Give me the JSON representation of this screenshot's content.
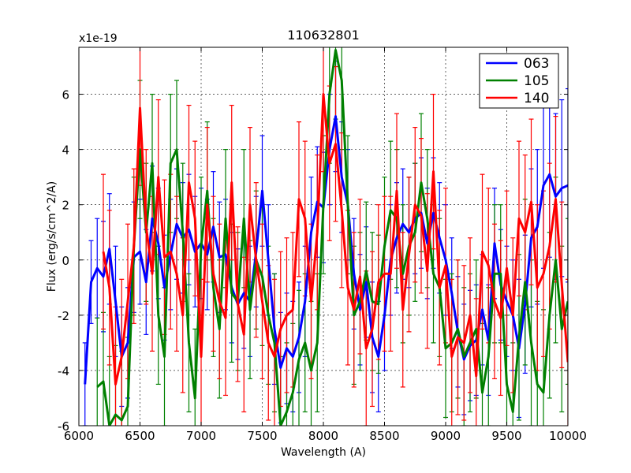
{
  "chart_data": {
    "type": "line",
    "title": "110632801",
    "xlabel": "Wavelength (A)",
    "ylabel": "Flux (erg/s/cm^2/A)",
    "offset_label": "x1e-19",
    "xlim": [
      6000,
      10000
    ],
    "ylim": [
      -6,
      7.7
    ],
    "xticks": [
      6000,
      6500,
      7000,
      7500,
      8000,
      8500,
      9000,
      9500,
      10000
    ],
    "yticks": [
      -6,
      -4,
      -2,
      0,
      2,
      4,
      6
    ],
    "grid": true,
    "legend_position": "top-right",
    "series": [
      {
        "name": "063",
        "color": "#0000ff",
        "x": [
          6050,
          6100,
          6150,
          6200,
          6250,
          6300,
          6350,
          6400,
          6450,
          6500,
          6550,
          6600,
          6650,
          6700,
          6750,
          6800,
          6850,
          6900,
          6950,
          7000,
          7050,
          7100,
          7150,
          7200,
          7250,
          7300,
          7350,
          7400,
          7450,
          7500,
          7550,
          7600,
          7650,
          7700,
          7750,
          7800,
          7850,
          7900,
          7950,
          8000,
          8050,
          8100,
          8150,
          8200,
          8250,
          8300,
          8350,
          8400,
          8450,
          8500,
          8550,
          8600,
          8650,
          8700,
          8750,
          8800,
          8850,
          8900,
          8950,
          9000,
          9050,
          9100,
          9150,
          9200,
          9250,
          9300,
          9350,
          9400,
          9450,
          9500,
          9550,
          9600,
          9650,
          9700,
          9750,
          9800,
          9850,
          9900,
          9950,
          10000
        ],
        "y": [
          -4.5,
          -0.8,
          -0.3,
          -0.6,
          0.4,
          -1.5,
          -3.5,
          -3.0,
          0.1,
          0.3,
          -0.8,
          1.5,
          0.6,
          -1.0,
          0.2,
          1.3,
          0.8,
          1.1,
          0.3,
          0.6,
          0.2,
          1.2,
          0.1,
          0.2,
          -1.0,
          -1.6,
          -1.2,
          -1.5,
          0.3,
          2.5,
          0.0,
          -2.5,
          -3.9,
          -3.2,
          -3.5,
          -2.8,
          -1.5,
          1.0,
          2.1,
          1.9,
          4.0,
          5.2,
          3.0,
          2.0,
          -0.5,
          -1.8,
          -0.8,
          -2.8,
          -3.5,
          -2.0,
          0.0,
          0.8,
          1.3,
          1.0,
          1.5,
          1.7,
          0.6,
          1.7,
          0.8,
          0.0,
          -1.2,
          -2.6,
          -3.6,
          -3.1,
          -2.9,
          -1.8,
          -2.9,
          0.6,
          -0.9,
          -1.5,
          -2.0,
          -3.2,
          -1.6,
          0.8,
          1.2,
          2.7,
          3.1,
          2.3,
          2.6,
          2.7
        ],
        "err": [
          1.5,
          1.5,
          1.8,
          2.0,
          2.0,
          2.0,
          1.8,
          2.0,
          2.0,
          1.9,
          1.9,
          1.9,
          2.0,
          1.9,
          2.0,
          2.0,
          2.0,
          2.0,
          2.0,
          2.0,
          2.0,
          2.0,
          2.0,
          2.0,
          2.0,
          2.0,
          2.0,
          2.0,
          2.0,
          2.0,
          2.0,
          2.0,
          2.0,
          2.0,
          2.0,
          2.0,
          2.0,
          2.0,
          2.0,
          2.0,
          2.0,
          2.0,
          2.0,
          2.0,
          2.0,
          2.0,
          2.0,
          2.0,
          2.0,
          2.0,
          2.0,
          2.0,
          2.0,
          2.0,
          2.0,
          2.0,
          2.0,
          2.0,
          2.0,
          2.0,
          2.0,
          2.0,
          2.0,
          2.0,
          2.0,
          2.0,
          2.0,
          2.0,
          2.0,
          2.0,
          2.0,
          2.5,
          2.5,
          2.5,
          2.8,
          3.0,
          3.0,
          3.0,
          3.2,
          3.5
        ]
      },
      {
        "name": "105",
        "color": "#008000",
        "x": [
          6150,
          6200,
          6250,
          6300,
          6350,
          6400,
          6450,
          6500,
          6550,
          6600,
          6650,
          6700,
          6750,
          6800,
          6850,
          6900,
          6950,
          7000,
          7050,
          7100,
          7150,
          7200,
          7250,
          7300,
          7350,
          7400,
          7450,
          7500,
          7550,
          7600,
          7650,
          7700,
          7750,
          7800,
          7850,
          7900,
          7950,
          8000,
          8050,
          8100,
          8150,
          8200,
          8250,
          8300,
          8350,
          8400,
          8450,
          8500,
          8550,
          8600,
          8650,
          8700,
          8750,
          8800,
          8850,
          8900,
          8950,
          9000,
          9050,
          9100,
          9150,
          9200,
          9250,
          9300,
          9350,
          9400,
          9450,
          9500,
          9550,
          9600,
          9650,
          9700,
          9750,
          9800,
          9850,
          9900,
          9950,
          10000
        ],
        "y": [
          -4.6,
          -4.4,
          -6.0,
          -5.6,
          -5.8,
          -5.3,
          0.5,
          4.0,
          1.0,
          3.5,
          -2.0,
          -3.5,
          3.5,
          4.0,
          1.0,
          -3.0,
          -5.0,
          0.5,
          2.5,
          -1.0,
          -2.5,
          1.5,
          -1.2,
          -1.5,
          1.5,
          -1.8,
          0.0,
          -0.6,
          -2.0,
          -3.0,
          -6.0,
          -5.5,
          -4.8,
          -3.6,
          -3.0,
          -4.0,
          -3.0,
          2.0,
          6.0,
          7.6,
          6.5,
          2.0,
          -2.0,
          -1.5,
          -0.4,
          -1.5,
          -1.6,
          0.5,
          1.8,
          1.5,
          -0.5,
          0.5,
          1.0,
          2.8,
          1.5,
          -0.5,
          -1.0,
          -3.2,
          -3.0,
          -2.5,
          -3.5,
          -3.0,
          -2.5,
          -4.8,
          -3.5,
          -0.5,
          -0.5,
          -4.5,
          -5.5,
          -2.8,
          -0.8,
          -3.0,
          -4.5,
          -4.8,
          -2.0,
          0.0,
          -2.5,
          -1.5
        ],
        "err": [
          2.5,
          2.5,
          2.5,
          2.5,
          2.5,
          2.5,
          2.5,
          2.5,
          2.5,
          2.5,
          2.5,
          2.5,
          2.5,
          2.5,
          2.5,
          2.5,
          2.5,
          2.5,
          2.5,
          2.5,
          2.5,
          2.5,
          2.5,
          2.5,
          2.5,
          2.5,
          2.5,
          2.5,
          2.5,
          2.5,
          2.5,
          2.5,
          2.5,
          2.5,
          2.5,
          2.5,
          2.5,
          2.5,
          2.5,
          2.5,
          2.5,
          2.5,
          2.5,
          2.5,
          2.5,
          2.5,
          2.5,
          2.5,
          2.5,
          2.5,
          2.5,
          2.5,
          2.5,
          2.5,
          2.5,
          2.5,
          2.5,
          2.5,
          2.5,
          2.5,
          2.5,
          2.5,
          2.5,
          2.5,
          2.5,
          2.5,
          2.5,
          2.5,
          2.5,
          3.0,
          3.0,
          3.0,
          3.0,
          3.0,
          3.0,
          3.0,
          3.0,
          3.0
        ]
      },
      {
        "name": "140",
        "color": "#ff0000",
        "x": [
          6200,
          6250,
          6300,
          6350,
          6400,
          6450,
          6500,
          6550,
          6600,
          6650,
          6700,
          6750,
          6800,
          6850,
          6900,
          6950,
          7000,
          7050,
          7100,
          7150,
          7200,
          7250,
          7300,
          7350,
          7400,
          7450,
          7500,
          7550,
          7600,
          7650,
          7700,
          7750,
          7800,
          7850,
          7900,
          7950,
          8000,
          8050,
          8100,
          8150,
          8200,
          8250,
          8300,
          8350,
          8400,
          8450,
          8500,
          8550,
          8600,
          8650,
          8700,
          8750,
          8800,
          8850,
          8900,
          8950,
          9000,
          9050,
          9100,
          9150,
          9200,
          9250,
          9300,
          9350,
          9400,
          9450,
          9500,
          9550,
          9600,
          9650,
          9700,
          9750,
          9800,
          9850,
          9900,
          9950,
          10000
        ],
        "y": [
          0.3,
          -1.0,
          -4.5,
          -3.5,
          -1.5,
          0.5,
          5.5,
          1.2,
          -0.5,
          3.0,
          0.1,
          0.3,
          -0.5,
          -2.0,
          2.8,
          1.5,
          -3.5,
          2.0,
          -0.5,
          -1.5,
          -2.1,
          2.8,
          -1.6,
          -2.7,
          2.0,
          0.0,
          -1.5,
          -3.0,
          -3.5,
          -2.5,
          -2.0,
          -1.8,
          2.2,
          1.5,
          -1.5,
          1.0,
          6.0,
          3.5,
          4.2,
          1.8,
          -1.0,
          -1.8,
          -0.6,
          -3.2,
          -2.5,
          -0.8,
          -0.5,
          -0.5,
          2.5,
          -1.8,
          0.2,
          2.0,
          1.6,
          -0.4,
          3.2,
          -1.0,
          -0.2,
          -3.5,
          -2.8,
          -3.0,
          -2.0,
          -4.2,
          0.3,
          -0.2,
          -1.5,
          -2.1,
          -0.3,
          -2.0,
          1.5,
          1.0,
          2.1,
          -1.0,
          -0.5,
          0.5,
          2.2,
          -0.9,
          -3.7
        ],
        "err": [
          2.8,
          2.8,
          2.8,
          2.8,
          2.8,
          2.8,
          2.8,
          2.8,
          2.8,
          2.8,
          2.8,
          2.8,
          2.8,
          2.8,
          2.8,
          2.8,
          2.8,
          2.8,
          2.8,
          2.8,
          2.8,
          2.8,
          2.8,
          2.8,
          2.8,
          2.8,
          2.8,
          2.8,
          2.8,
          2.8,
          2.8,
          2.8,
          2.8,
          2.8,
          2.8,
          2.8,
          2.8,
          2.8,
          2.8,
          2.8,
          2.8,
          2.8,
          2.8,
          2.8,
          2.8,
          2.8,
          2.8,
          2.8,
          2.8,
          2.8,
          2.8,
          2.8,
          2.8,
          2.8,
          2.8,
          2.8,
          2.8,
          2.8,
          2.8,
          2.8,
          2.8,
          2.8,
          2.8,
          2.8,
          2.8,
          2.8,
          2.8,
          2.8,
          2.8,
          2.8,
          3.0,
          3.0,
          3.0,
          3.0,
          3.0,
          3.0,
          3.0
        ]
      }
    ]
  }
}
